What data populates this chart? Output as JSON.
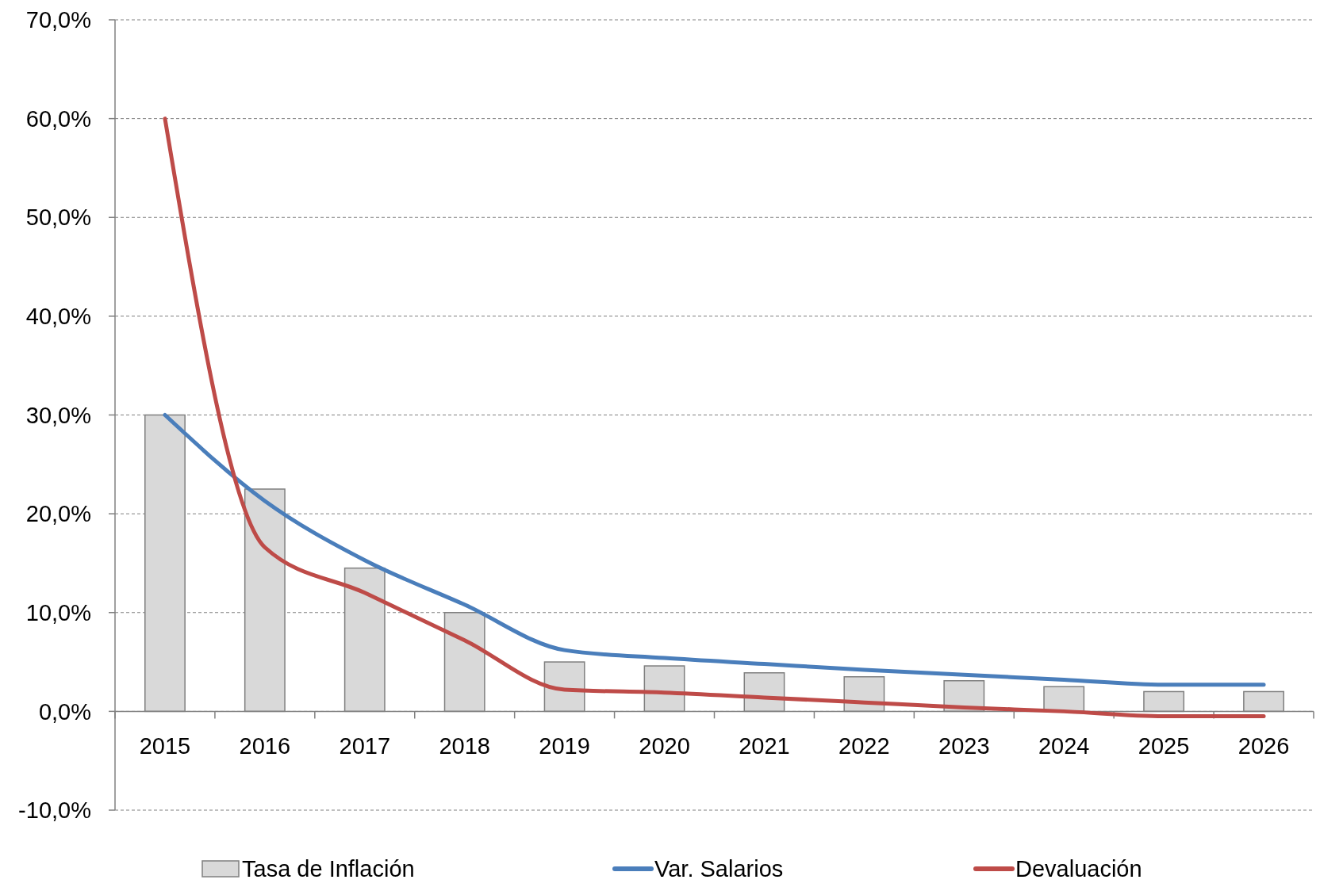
{
  "chart_data": {
    "type": "bar",
    "categories": [
      "2015",
      "2016",
      "2017",
      "2018",
      "2019",
      "2020",
      "2021",
      "2022",
      "2023",
      "2024",
      "2025",
      "2026"
    ],
    "series": [
      {
        "name": "Tasa de Inflación",
        "color": "#d9d9d9",
        "values": [
          30,
          22.5,
          14.5,
          10,
          5,
          4.6,
          3.9,
          3.5,
          3.1,
          2.5,
          2,
          2
        ]
      },
      {
        "name": "Var. Salarios",
        "type": "line",
        "color": "#4a7ebb",
        "values": [
          30,
          21.3,
          15.3,
          10.8,
          6.2,
          5.4,
          4.8,
          4.2,
          3.7,
          3.2,
          2.7,
          2.7
        ]
      },
      {
        "name": "Devaluación",
        "type": "line",
        "color": "#be4b48",
        "values": [
          60,
          16.6,
          12,
          7.2,
          2.2,
          1.9,
          1.4,
          0.9,
          0.4,
          0,
          -0.5,
          -0.5
        ]
      }
    ],
    "ylim": [
      -10,
      70
    ],
    "yticks": [
      {
        "value": -10,
        "label": "-10,0%"
      },
      {
        "value": 0,
        "label": "0,0%"
      },
      {
        "value": 10,
        "label": "10,0%"
      },
      {
        "value": 20,
        "label": "20,0%"
      },
      {
        "value": 30,
        "label": "30,0%"
      },
      {
        "value": 40,
        "label": "40,0%"
      },
      {
        "value": 50,
        "label": "50,0%"
      },
      {
        "value": 60,
        "label": "60,0%"
      },
      {
        "value": 70,
        "label": "70,0%"
      }
    ],
    "grid": "y",
    "legend": "bottom",
    "marker": "none",
    "line_style": "solid"
  }
}
